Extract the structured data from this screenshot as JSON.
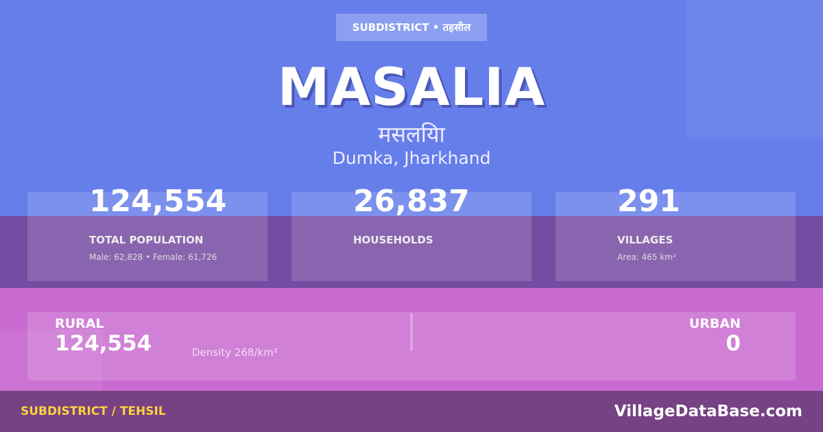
{
  "badge": "SUBDISTRICT • तहसील",
  "title": "MASALIA",
  "title_hindi": "मसलयिा",
  "location": "Dumka, Jharkhand",
  "stats": [
    {
      "value": "124,554",
      "label": "TOTAL POPULATION",
      "sub": "Male: 62,828 • Female: 61,726"
    },
    {
      "value": "26,837",
      "label": "HOUSEHOLDS",
      "sub": ""
    },
    {
      "value": "291",
      "label": "VILLAGES",
      "sub": "Area: 465 km²"
    }
  ],
  "rural": {
    "label": "RURAL",
    "value": "124,554"
  },
  "density": "Density 268/km²",
  "urban": {
    "label": "URBAN",
    "value": "0"
  },
  "footer": {
    "left": "SUBDISTRICT / TEHSIL",
    "right": "VillageDataBase.com"
  },
  "colors": {
    "top": "#667eea",
    "middle": "#764ba2",
    "bottom": "#c86ad0",
    "accent": "#ffd23f"
  }
}
